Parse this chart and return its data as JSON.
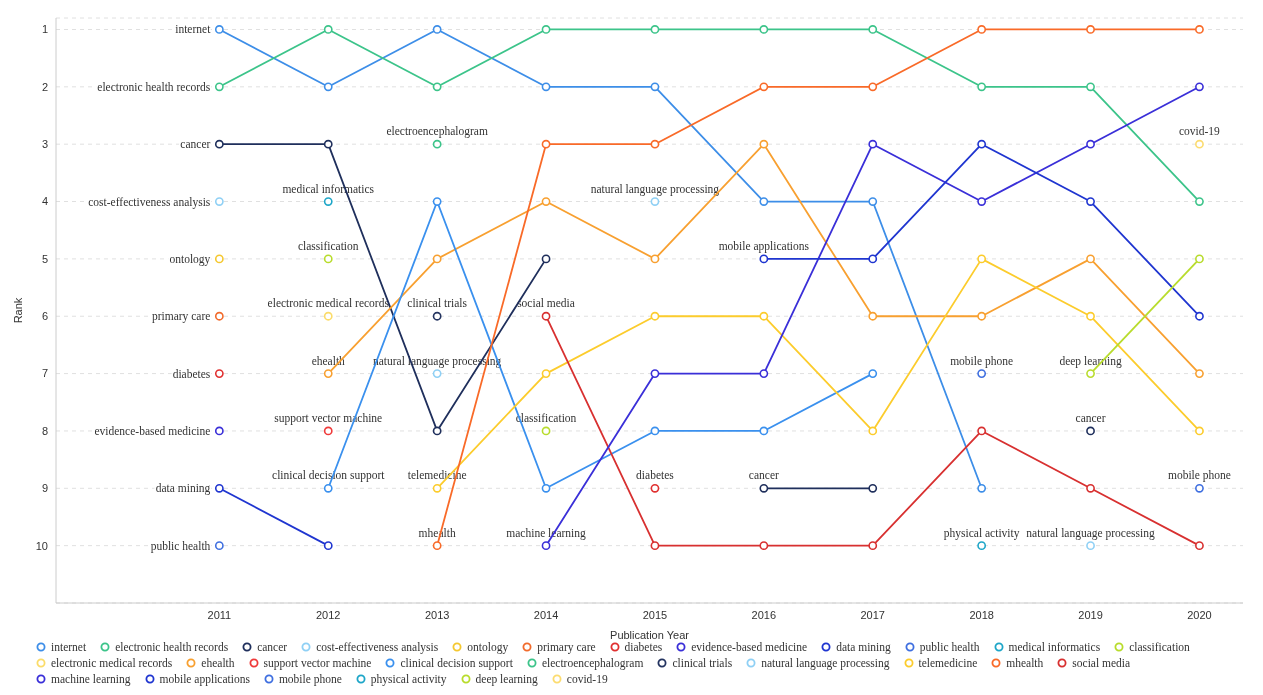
{
  "chart_data": {
    "type": "line",
    "xlabel": "Publication Year",
    "ylabel": "Rank",
    "x": [
      2011,
      2012,
      2013,
      2014,
      2015,
      2016,
      2017,
      2018,
      2019,
      2020
    ],
    "xlim": [
      2009.5,
      2020.4
    ],
    "xticks": [
      2011,
      2012,
      2013,
      2014,
      2015,
      2016,
      2017,
      2018,
      2019,
      2020
    ],
    "ylim": [
      11,
      0.8
    ],
    "yticks": [
      1,
      2,
      3,
      4,
      5,
      6,
      7,
      8,
      9,
      10
    ],
    "grid": "y",
    "legend": "bottom",
    "marker": "circle",
    "line_style": "solid",
    "series": [
      {
        "name": "internet",
        "color": "#3d8ee8",
        "values": [
          1,
          2,
          1,
          2,
          2,
          4,
          4,
          9,
          null,
          null
        ]
      },
      {
        "name": "electronic health records",
        "color": "#3cc48a",
        "values": [
          2,
          1,
          2,
          1,
          1,
          1,
          1,
          2,
          2,
          4
        ]
      },
      {
        "name": "cancer",
        "color": "#1f2f5c",
        "values": [
          3,
          3,
          8,
          5,
          null,
          9,
          9,
          null,
          8,
          null
        ]
      },
      {
        "name": "cost-effectiveness analysis",
        "type": "scatter",
        "color": "#8fd0f5",
        "values": [
          4,
          null,
          null,
          null,
          null,
          null,
          null,
          null,
          null,
          null
        ]
      },
      {
        "name": "ontology",
        "type": "scatter",
        "color": "#f5c830",
        "values": [
          5,
          null,
          null,
          null,
          null,
          null,
          null,
          null,
          null,
          null
        ]
      },
      {
        "name": "primary care",
        "type": "scatter",
        "color": "#f26b2c",
        "values": [
          6,
          null,
          null,
          null,
          null,
          null,
          null,
          null,
          null,
          null
        ]
      },
      {
        "name": "diabetes",
        "type": "scatter",
        "color": "#e03030",
        "values": [
          7,
          null,
          null,
          null,
          9,
          null,
          null,
          null,
          null,
          null
        ]
      },
      {
        "name": "evidence-based medicine",
        "type": "scatter",
        "color": "#3a2fd8",
        "values": [
          8,
          null,
          null,
          null,
          null,
          null,
          null,
          null,
          null,
          null
        ]
      },
      {
        "name": "data mining",
        "color": "#1f35d0",
        "values": [
          9,
          10,
          null,
          null,
          null,
          null,
          null,
          null,
          null,
          null
        ]
      },
      {
        "name": "public health",
        "type": "scatter",
        "color": "#3f6fe0",
        "values": [
          10,
          null,
          null,
          null,
          null,
          null,
          null,
          null,
          null,
          null
        ]
      },
      {
        "name": "medical informatics",
        "type": "scatter",
        "color": "#1ea6c8",
        "values": [
          null,
          4,
          null,
          null,
          null,
          null,
          null,
          null,
          null,
          null
        ]
      },
      {
        "name": "classification",
        "type": "scatter",
        "color": "#b8dc2c",
        "values": [
          null,
          5,
          null,
          8,
          null,
          null,
          null,
          null,
          null,
          null
        ]
      },
      {
        "name": "electronic medical records",
        "type": "scatter",
        "color": "#fbdc6a",
        "values": [
          null,
          6,
          null,
          null,
          null,
          null,
          null,
          null,
          null,
          null
        ]
      },
      {
        "name": "ehealth",
        "color": "#f8a030",
        "values": [
          null,
          7,
          5,
          4,
          5,
          3,
          6,
          6,
          5,
          7
        ]
      },
      {
        "name": "support vector machine",
        "type": "scatter",
        "color": "#ef3a3a",
        "values": [
          null,
          8,
          null,
          null,
          null,
          null,
          null,
          null,
          null,
          null
        ]
      },
      {
        "name": "clinical decision support",
        "color": "#3a90ee",
        "values": [
          null,
          9,
          4,
          9,
          8,
          8,
          7,
          null,
          null,
          null
        ]
      },
      {
        "name": "electroencephalogram",
        "type": "scatter",
        "color": "#3cc48a",
        "values": [
          null,
          null,
          3,
          null,
          null,
          null,
          null,
          null,
          null,
          null
        ]
      },
      {
        "name": "clinical trials",
        "type": "scatter",
        "color": "#243460",
        "values": [
          null,
          null,
          6,
          null,
          null,
          null,
          null,
          null,
          null,
          null
        ]
      },
      {
        "name": "natural language  processing",
        "type": "scatter",
        "color": "#8fd0f5",
        "values": [
          null,
          null,
          7,
          null,
          4,
          null,
          null,
          null,
          10,
          null
        ]
      },
      {
        "name": "telemedicine",
        "color": "#fccc2c",
        "values": [
          null,
          null,
          9,
          7,
          6,
          6,
          8,
          5,
          6,
          8
        ]
      },
      {
        "name": "mhealth",
        "color": "#f96a28",
        "values": [
          null,
          null,
          10,
          3,
          3,
          2,
          2,
          1,
          1,
          1
        ]
      },
      {
        "name": "social media",
        "color": "#d83030",
        "values": [
          null,
          null,
          null,
          6,
          10,
          10,
          10,
          8,
          9,
          10
        ]
      },
      {
        "name": "machine learning",
        "color": "#3a2fd8",
        "values": [
          null,
          null,
          null,
          10,
          7,
          7,
          3,
          4,
          3,
          2
        ]
      },
      {
        "name": "mobile applications",
        "color": "#1f35d0",
        "values": [
          null,
          null,
          null,
          null,
          null,
          5,
          5,
          3,
          4,
          6
        ]
      },
      {
        "name": "mobile phone",
        "type": "scatter",
        "color": "#3f6fe0",
        "values": [
          null,
          null,
          null,
          null,
          null,
          null,
          null,
          7,
          null,
          9
        ]
      },
      {
        "name": "physical activity",
        "type": "scatter",
        "color": "#1ea6c8",
        "values": [
          null,
          null,
          null,
          null,
          null,
          null,
          null,
          10,
          null,
          null
        ]
      },
      {
        "name": "deep learning",
        "color": "#b8dc2c",
        "values": [
          null,
          null,
          null,
          null,
          null,
          null,
          null,
          null,
          7,
          5
        ]
      },
      {
        "name": "covid-19",
        "type": "scatter",
        "color": "#fcdc70",
        "values": [
          null,
          null,
          null,
          null,
          null,
          null,
          null,
          null,
          null,
          3
        ]
      }
    ]
  }
}
